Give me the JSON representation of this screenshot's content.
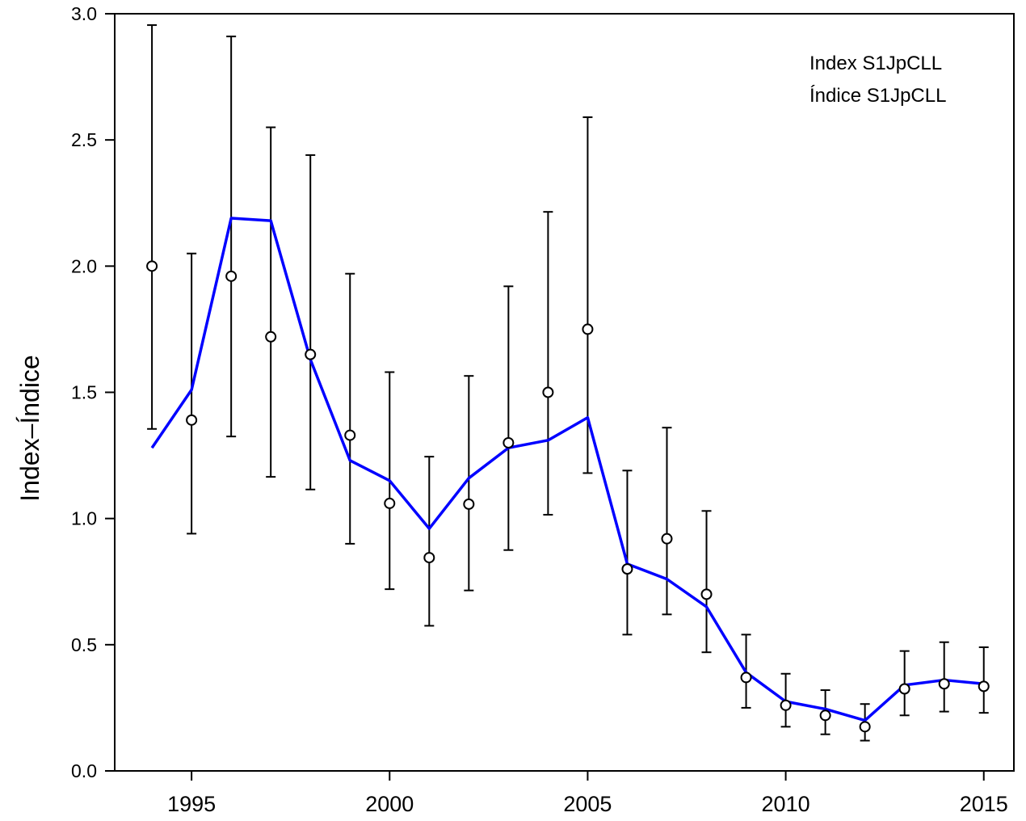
{
  "chart_data": {
    "type": "line",
    "y_label": "Index–Índice",
    "annotations": [
      "Index S1JpCLL",
      "Índice S1JpCLL"
    ],
    "x": [
      1994,
      1995,
      1996,
      1997,
      1998,
      1999,
      2000,
      2001,
      2002,
      2003,
      2004,
      2005,
      2006,
      2007,
      2008,
      2009,
      2010,
      2011,
      2012,
      2013,
      2014,
      2015
    ],
    "series": [
      {
        "color": "#000000",
        "values": [
          2.0,
          1.39,
          1.96,
          1.72,
          1.65,
          1.33,
          1.06,
          0.845,
          1.057,
          1.3,
          1.5,
          1.75,
          0.8,
          0.92,
          0.7,
          0.37,
          0.26,
          0.22,
          0.175,
          0.325,
          0.345,
          0.335
        ],
        "lower": [
          1.355,
          0.94,
          1.325,
          1.165,
          1.115,
          0.9,
          0.72,
          0.575,
          0.715,
          0.875,
          1.015,
          1.18,
          0.54,
          0.62,
          0.47,
          0.25,
          0.175,
          0.145,
          0.12,
          0.22,
          0.235,
          0.23
        ],
        "upper": [
          2.955,
          2.05,
          2.91,
          2.55,
          2.44,
          1.97,
          1.58,
          1.245,
          1.565,
          1.92,
          2.215,
          2.59,
          1.19,
          1.36,
          1.03,
          0.54,
          0.385,
          0.32,
          0.265,
          0.475,
          0.51,
          0.49
        ]
      },
      {
        "color": "#0000ff",
        "values": [
          1.28,
          1.51,
          2.19,
          2.18,
          1.63,
          1.23,
          1.15,
          0.96,
          1.16,
          1.28,
          1.31,
          1.4,
          0.82,
          0.76,
          0.65,
          0.39,
          0.275,
          0.245,
          0.2,
          0.34,
          0.36,
          0.345
        ]
      }
    ],
    "xlim": [
      1993.06,
      2015.76
    ],
    "ylim": [
      0,
      3.0
    ],
    "xticks": [
      1995,
      2000,
      2005,
      2010,
      2015
    ],
    "yticks": [
      {
        "value": 0,
        "label": "0.0"
      },
      0.5,
      {
        "value": 1,
        "label": "1.0"
      },
      1.5,
      {
        "value": 2,
        "label": "2.0"
      },
      2.5,
      {
        "value": 3,
        "label": "3.0"
      }
    ]
  }
}
